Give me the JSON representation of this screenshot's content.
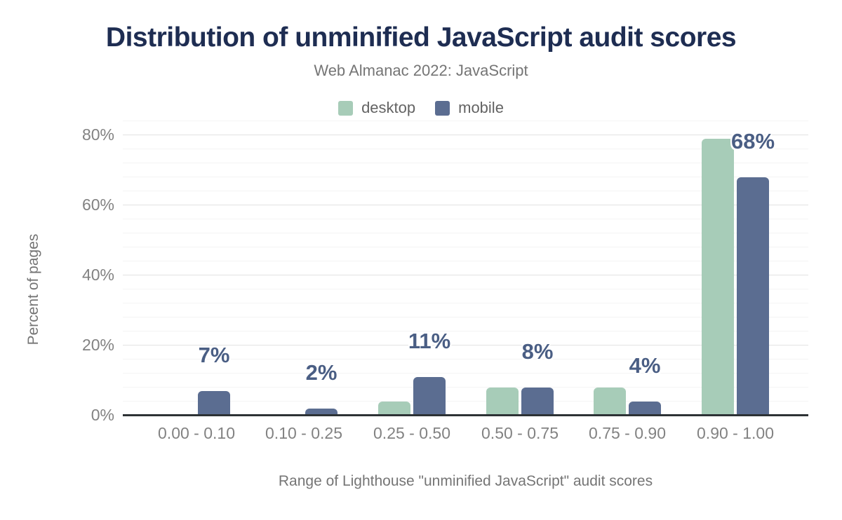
{
  "chart_data": {
    "type": "bar",
    "title": "Distribution of unminified JavaScript audit scores",
    "subtitle": "Web Almanac 2022: JavaScript",
    "categories": [
      "0.00 - 0.10",
      "0.10 - 0.25",
      "0.25 - 0.50",
      "0.50 - 0.75",
      "0.75 - 0.90",
      "0.90 - 1.00"
    ],
    "series": [
      {
        "name": "desktop",
        "color": "#a7ccb8",
        "values": [
          0.3,
          0.2,
          4,
          8,
          8,
          79
        ],
        "labels": null
      },
      {
        "name": "mobile",
        "color": "#5b6d91",
        "values": [
          7,
          2,
          11,
          8,
          4,
          68
        ],
        "labels": [
          "7%",
          "2%",
          "11%",
          "8%",
          "4%",
          "68%"
        ]
      }
    ],
    "xlabel": "Range of Lighthouse \"unminified JavaScript\" audit scores",
    "ylabel": "Percent of pages",
    "ylim": [
      0,
      84
    ],
    "yticks": [
      {
        "value": 0,
        "label": "0%"
      },
      {
        "value": 20,
        "label": "20%"
      },
      {
        "value": 40,
        "label": "40%"
      },
      {
        "value": 60,
        "label": "60%"
      },
      {
        "value": 80,
        "label": "80%"
      }
    ],
    "grid": "major every 20%, minor every 4%",
    "legend_position": "top"
  },
  "colors": {
    "title": "#1e2d52",
    "subtitle": "#757575",
    "tick_labels": "#828282",
    "value_labels": "#4a5e84",
    "major_grid": "#e2e2e2",
    "minor_grid": "#f4f4f4",
    "axis_line": "#2d3235",
    "background": "#ffffff"
  }
}
